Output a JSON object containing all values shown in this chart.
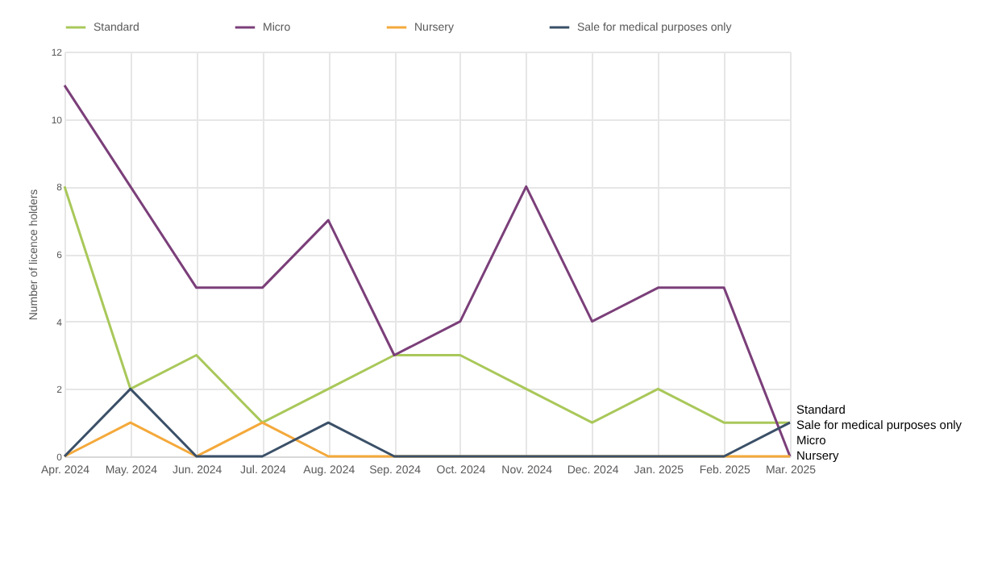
{
  "chart_data": {
    "type": "line",
    "ylabel": "Number of licence holders",
    "categories": [
      "Apr. 2024",
      "May. 2024",
      "Jun. 2024",
      "Jul. 2024",
      "Aug. 2024",
      "Sep. 2024",
      "Oct. 2024",
      "Nov. 2024",
      "Dec. 2024",
      "Jan. 2025",
      "Feb. 2025",
      "Mar. 2025"
    ],
    "series": [
      {
        "name": "Standard",
        "color": "#a9c85a",
        "values": [
          8,
          2,
          3,
          1,
          2,
          3,
          3,
          2,
          1,
          2,
          1,
          1
        ]
      },
      {
        "name": "Micro",
        "color": "#7b3f7a",
        "values": [
          11,
          8,
          5,
          5,
          7,
          3,
          4,
          8,
          4,
          5,
          5,
          0
        ]
      },
      {
        "name": "Nursery",
        "color": "#f4a93b",
        "values": [
          0,
          1,
          0,
          1,
          0,
          0,
          0,
          0,
          0,
          0,
          0,
          0
        ]
      },
      {
        "name": "Sale for medical purposes only",
        "color": "#3b5068",
        "values": [
          0,
          2,
          0,
          0,
          1,
          0,
          0,
          0,
          0,
          0,
          0,
          1
        ]
      }
    ],
    "ylim": [
      0,
      12
    ],
    "yticks": [
      0,
      2,
      4,
      6,
      8,
      10,
      12
    ],
    "grid": true,
    "legend": "top",
    "marker": "none",
    "line_style": "solid"
  }
}
